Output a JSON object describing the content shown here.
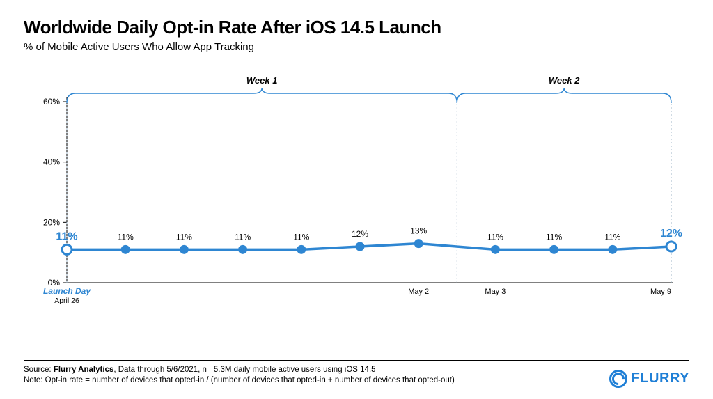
{
  "title": "Worldwide Daily Opt-in Rate After iOS 14.5 Launch",
  "subtitle": "% of Mobile Active Users Who Allow App Tracking",
  "weeks": {
    "w1": "Week 1",
    "w2": "Week 2"
  },
  "chart": {
    "type": "line",
    "ylim": [
      0,
      60
    ],
    "yticks": [
      0,
      20,
      40,
      60
    ],
    "ytick_labels": [
      "0%",
      "20%",
      "40%",
      "60%"
    ],
    "series": {
      "values": [
        11,
        11,
        11,
        11,
        11,
        12,
        13,
        11,
        11,
        11,
        12
      ],
      "labels": [
        "11%",
        "11%",
        "11%",
        "11%",
        "11%",
        "12%",
        "13%",
        "11%",
        "11%",
        "11%",
        "12%"
      ],
      "colors": {
        "line": "#2e86d2",
        "marker_fill": "#2e86d2",
        "marker_endpoint_fill": "#ffffff",
        "marker_stroke": "#2e86d2",
        "label_normal": "#000000",
        "label_emphasis": "#2e86d2"
      },
      "line_width": 3.5,
      "marker_radius": 5.5,
      "endpoint_marker_radius": 7,
      "label_fontsize_normal": 12,
      "label_fontsize_emphasis": 16,
      "emphasis_indices": [
        0,
        10
      ]
    },
    "x_labels": {
      "launch": "Launch Day",
      "launch_sub": "April 26",
      "may2": "May 2",
      "may3": "May 3",
      "may9": "May 9"
    },
    "axis_color": "#000000",
    "bracket_color": "#2e86d2",
    "dashed_color": "#9fb6c7",
    "plot_bg": "#ffffff",
    "tick_font_size": 12,
    "xlabel_font_size": 11
  },
  "footer": {
    "source_prefix": "Source: ",
    "source_bold": "Flurry Analytics",
    "source_rest": ", Data through 5/6/2021, n= 5.3M daily mobile active users using iOS 14.5",
    "note": "Note: Opt-in rate = number of devices that opted-in / (number of devices that opted-in + number of devices that opted-out)"
  },
  "logo_text": "FLURRY"
}
